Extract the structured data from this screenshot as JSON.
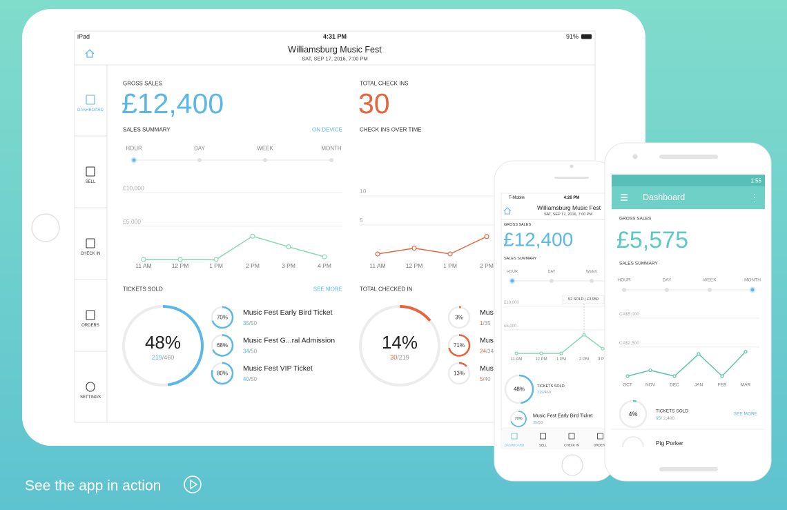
{
  "ipad": {
    "status": {
      "device": "iPad",
      "time": "4:31 PM",
      "battery": "91%"
    },
    "header": {
      "title": "Williamsburg Music Fest",
      "subtitle": "SAT, SEP 17, 2016, 7:00 PM"
    },
    "nav": [
      "DASHBOARD",
      "SELL",
      "CHECK IN",
      "ORDERS",
      "SETTINGS"
    ],
    "gross_sales": {
      "label": "GROSS SALES",
      "value": "£12,400"
    },
    "total_check_ins": {
      "label": "TOTAL CHECK INS",
      "value": "30"
    },
    "sales_summary": {
      "title": "SALES SUMMARY",
      "link": "ON DEVICE",
      "periods": [
        "HOUR",
        "DAY",
        "WEEK",
        "MONTH"
      ],
      "chart_data": {
        "type": "line",
        "categories": [
          "11 AM",
          "12 PM",
          "1 PM",
          "2 PM",
          "3 PM",
          "4 PM"
        ],
        "values": [
          0,
          0,
          0,
          3500,
          1900,
          400
        ],
        "ylim": [
          0,
          12000
        ],
        "yticks": [
          {
            "value": 5000,
            "label": "£5,000"
          },
          {
            "value": 10000,
            "label": "£10,000"
          }
        ],
        "color": "#86d9b0"
      }
    },
    "check_ins_over_time": {
      "title": "CHECK INS OVER TIME",
      "chart_data": {
        "type": "line",
        "categories": [
          "11 AM",
          "12 PM",
          "1 PM",
          "2 PM"
        ],
        "values": [
          0,
          1,
          0,
          3
        ],
        "ylim": [
          0,
          12
        ],
        "yticks": [
          5,
          10
        ],
        "color": "#e8643c"
      }
    },
    "tickets_sold": {
      "title": "TICKETS SOLD",
      "link": "SEE MORE",
      "percent": {
        "value": 48,
        "label": "48%"
      },
      "sold": 219,
      "capacity": "/460",
      "tickets": [
        {
          "name": "Music Fest Early Bird Ticket",
          "percent": {
            "value": 70,
            "label": "70%"
          },
          "sold": 35,
          "capacity": "/50"
        },
        {
          "name": "Music Fest G...ral Admission",
          "percent": {
            "value": 68,
            "label": "68%"
          },
          "sold": 34,
          "capacity": "/50"
        },
        {
          "name": "Music Fest VIP Ticket",
          "percent": {
            "value": 80,
            "label": "80%"
          },
          "sold": 40,
          "capacity": "/50"
        }
      ]
    },
    "total_checked_in": {
      "title": "TOTAL CHECKED IN",
      "percent": {
        "value": 14,
        "label": "14%"
      },
      "sold": 30,
      "capacity": "/219",
      "tickets": [
        {
          "name": "Music Fest Early Bird Ticket",
          "percent": {
            "value": 3,
            "label": "3%"
          },
          "sold": 1,
          "capacity": "/35"
        },
        {
          "name": "Music Fest G...ral Admission",
          "percent": {
            "value": 71,
            "label": "71%"
          },
          "sold": 24,
          "capacity": "/34"
        },
        {
          "name": "Music Fest VIP Ticket",
          "percent": {
            "value": 13,
            "label": "13%"
          },
          "sold": 5,
          "capacity": "/40"
        }
      ]
    }
  },
  "iphone": {
    "status": {
      "carrier": "T-Mobile",
      "time": "4:26 PM"
    },
    "header": {
      "title": "Williamsburg Music Fest",
      "subtitle": "SAT, SEP 17, 2016, 7:00 PM"
    },
    "gross_sales": {
      "label": "GROSS SALES",
      "value": "£12,400"
    },
    "sales_summary": {
      "title": "SALES SUMMARY",
      "periods": [
        "HOUR",
        "DAY",
        "WEEK"
      ],
      "tooltip": "52 SOLD | £3,950",
      "chart_data": {
        "type": "line",
        "categories": [
          "11 AM",
          "12 PM",
          "1 PM",
          "2 PM",
          "3 PM"
        ],
        "values": [
          0,
          0,
          0,
          3950,
          1000
        ],
        "ylim": [
          0,
          12000
        ],
        "yticks": [
          {
            "value": 5000,
            "label": "£5,000"
          },
          {
            "value": 10000,
            "label": "£10,000"
          }
        ],
        "color": "#86d9b0"
      }
    },
    "tickets_sold": {
      "title": "TICKETS SOLD",
      "percent": {
        "value": 48,
        "label": "48%"
      },
      "sold": 219,
      "capacity": "/460",
      "tickets": [
        {
          "name": "Music Fest Early Bird Ticket",
          "percent": {
            "value": 70,
            "label": "70%"
          },
          "sold": 35,
          "capacity": "/50"
        }
      ]
    },
    "tabs": [
      "DASHBOARD",
      "SELL",
      "CHECK IN",
      "ORDERS"
    ]
  },
  "android": {
    "status": {
      "time": "1:55"
    },
    "app_bar": {
      "title": "Dashboard"
    },
    "gross_sales": {
      "label": "GROSS SALES",
      "value": "£5,575"
    },
    "sales_summary": {
      "title": "SALES SUMMARY",
      "periods": [
        "HOUR",
        "DAY",
        "WEEK",
        "MONTH"
      ],
      "chart_data": {
        "type": "line",
        "categories": [
          "OCT",
          "NOV",
          "DEC",
          "JAN",
          "FEB",
          "MAR"
        ],
        "values": [
          0,
          500,
          0,
          1900,
          0,
          2100
        ],
        "ylim": [
          0,
          6000
        ],
        "yticks": [
          {
            "value": 2500,
            "label": "CA$2,500"
          },
          {
            "value": 5000,
            "label": "CA$5,000"
          }
        ],
        "color": "#5cc3ac"
      }
    },
    "tickets_sold": {
      "title": "TICKETS SOLD",
      "link": "SEE MORE",
      "percent": {
        "value": 4,
        "label": "4%"
      },
      "sold": 95,
      "capacity": "/ 2,400",
      "tickets": [
        {
          "name": "Pig Porker"
        }
      ]
    }
  },
  "cta": "See the app in action"
}
